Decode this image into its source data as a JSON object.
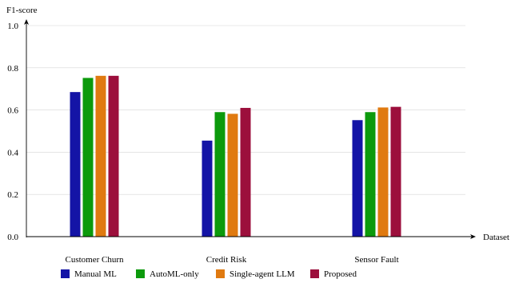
{
  "chart_data": {
    "type": "bar",
    "title": "",
    "xlabel": "Dataset",
    "ylabel": "F1-score",
    "ylim": [
      0,
      1.0
    ],
    "yticks": [
      "0.0",
      "0.2",
      "0.4",
      "0.6",
      "0.8",
      "1.0"
    ],
    "categories": [
      "Customer Churn",
      "Credit Risk",
      "Sensor Fault"
    ],
    "grid": true,
    "legend_position": "bottom",
    "series": [
      {
        "name": "Manual ML",
        "color": "#1414a6",
        "values": [
          0.685,
          0.455,
          0.552
        ]
      },
      {
        "name": "AutoML-only",
        "color": "#0c9a0c",
        "values": [
          0.752,
          0.59,
          0.59
        ]
      },
      {
        "name": "Single-agent LLM",
        "color": "#e07a10",
        "values": [
          0.762,
          0.582,
          0.612
        ]
      },
      {
        "name": "Proposed",
        "color": "#9c0f3c",
        "values": [
          0.762,
          0.61,
          0.615
        ]
      }
    ]
  }
}
